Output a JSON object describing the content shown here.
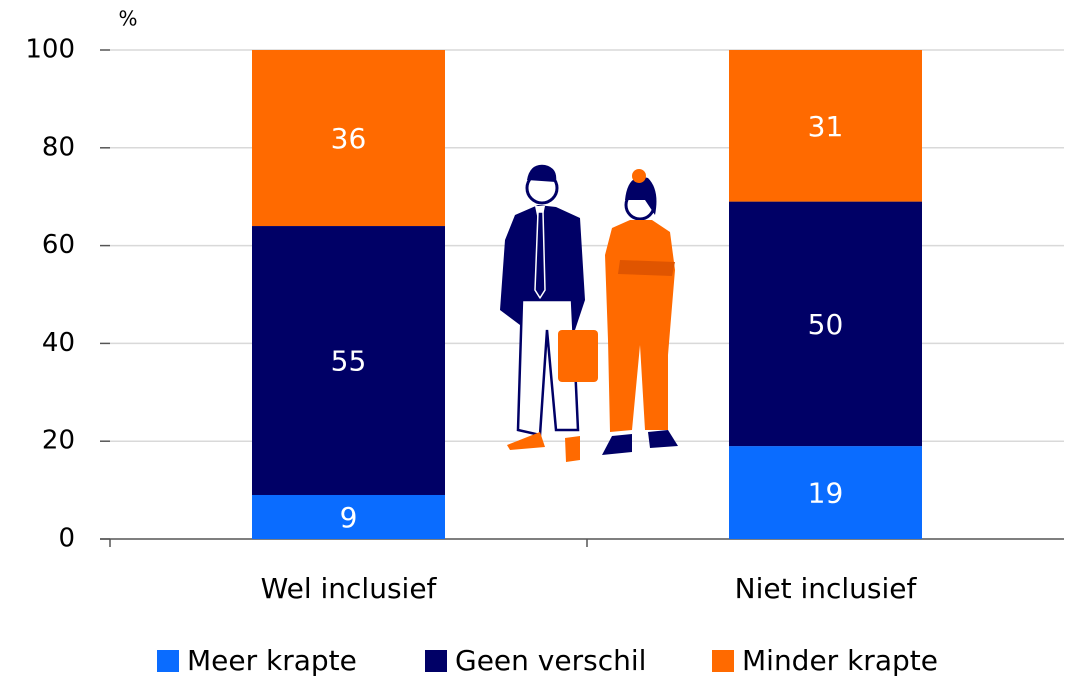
{
  "chart_data": {
    "type": "stacked_bar",
    "ylabel": "%",
    "categories": [
      "Wel inclusief",
      "Niet inclusief"
    ],
    "series": [
      {
        "name": "Meer krapte",
        "color": "#0a6cff",
        "values": [
          9,
          19
        ]
      },
      {
        "name": "Geen verschil",
        "color": "#000066",
        "values": [
          55,
          50
        ]
      },
      {
        "name": "Minder krapte",
        "color": "#ff6a00",
        "values": [
          36,
          31
        ]
      }
    ],
    "ylim": [
      0,
      100
    ],
    "yticks": [
      0,
      20,
      40,
      60,
      80,
      100
    ],
    "grid": true,
    "legend": "bottom"
  }
}
